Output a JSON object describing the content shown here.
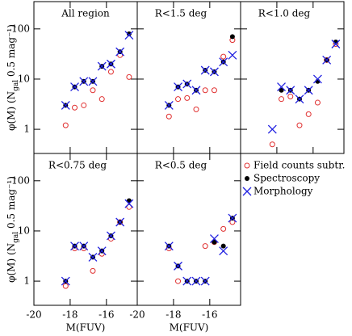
{
  "chart_data": {
    "type": "scatter",
    "ylabel": {
      "main": "φ(M)  (N",
      "sub": "gal",
      "tail": " 0.5 mag⁻¹)"
    },
    "xlabel": "M(FUV)",
    "xlim": [
      -20,
      -14.3
    ],
    "xticks": [
      -20,
      -18,
      -16
    ],
    "ylim": [
      0.33,
      350
    ],
    "yticks": [
      1,
      10,
      100
    ],
    "y_log": true,
    "series": [
      {
        "name": "Field counts subtr.",
        "color": "#e03030",
        "marker": "open-circle"
      },
      {
        "name": "Spectroscopy",
        "color": "#000000",
        "marker": "filled-circle"
      },
      {
        "name": "Morphology",
        "color": "#2020e0",
        "marker": "cross"
      }
    ],
    "x": [
      -18.25,
      -17.75,
      -17.25,
      -16.75,
      -16.25,
      -15.75,
      -15.25,
      -14.75
    ],
    "panels": [
      {
        "title": "All region",
        "series": [
          {
            "values": [
              1.2,
              2.7,
              3.0,
              6.0,
              4.0,
              14,
              30,
              11
            ]
          },
          {
            "values": [
              3,
              7,
              9,
              9,
              18,
              20,
              35,
              80
            ]
          },
          {
            "values": [
              3,
              7,
              9,
              9,
              18,
              20,
              35,
              75
            ]
          }
        ]
      },
      {
        "title": "R<1.5 deg",
        "series": [
          {
            "values": [
              1.8,
              4.0,
              4.2,
              2.5,
              6.0,
              6.0,
              28,
              60
            ]
          },
          {
            "values": [
              3,
              7,
              8,
              6,
              15,
              14,
              22,
              70
            ]
          },
          {
            "values": [
              3,
              7,
              8,
              6,
              15,
              14,
              22,
              30
            ]
          }
        ]
      },
      {
        "title": "R<1.0 deg",
        "series": [
          {
            "values": [
              0.5,
              4.0,
              4.5,
              1.2,
              2.0,
              3.4,
              24,
              50
            ]
          },
          {
            "values": [
              null,
              6,
              6,
              4,
              6,
              9,
              24,
              55
            ]
          },
          {
            "values": [
              1,
              7,
              6,
              4,
              6,
              10,
              24,
              50
            ]
          }
        ]
      },
      {
        "title": "R<0.75 deg",
        "series": [
          {
            "values": [
              0.8,
              4.5,
              4.5,
              1.6,
              3.5,
              7,
              15,
              30
            ]
          },
          {
            "values": [
              1,
              5,
              5,
              3,
              4,
              8,
              15,
              40
            ]
          },
          {
            "values": [
              1,
              5,
              5,
              3,
              4,
              8,
              15,
              35
            ]
          }
        ]
      },
      {
        "title": "R<0.5 deg",
        "series": [
          {
            "values": [
              4.5,
              1.0,
              null,
              null,
              5,
              6,
              11,
              15
            ]
          },
          {
            "values": [
              5,
              2,
              1,
              1,
              1,
              6,
              5,
              18
            ]
          },
          {
            "values": [
              5,
              2,
              1,
              1,
              1,
              7,
              4,
              18
            ]
          }
        ]
      }
    ]
  }
}
